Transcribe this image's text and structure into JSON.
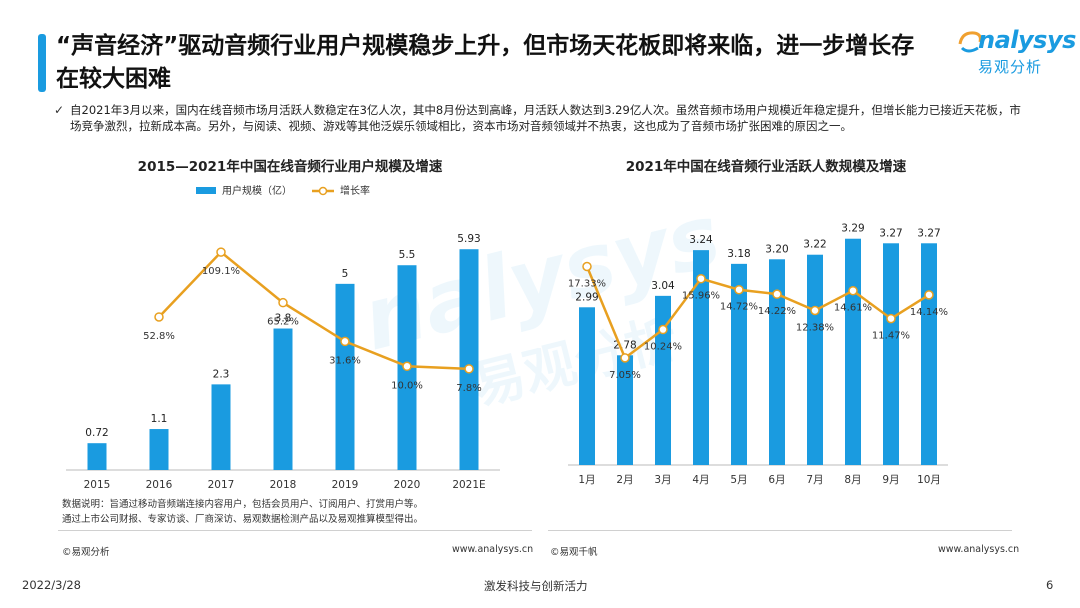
{
  "header": {
    "title": "“声音经济”驱动音频行业用户规模稳步上升，但市场天花板即将来临，进一步增长存在较大困难",
    "logo_en": "nalysys",
    "logo_cn": "易观分析"
  },
  "summary": {
    "text": "自2021年3月以来，国内在线音频市场月活跃人数稳定在3亿人次，其中8月份达到高峰，月活跃人数达到3.29亿人次。虽然音频市场用户规模近年稳定提升，但增长能力已接近天花板，市场竞争激烈，拉新成本高。另外，与阅读、视频、游戏等其他泛娱乐领域相比，资本市场对音频领域并不热衷，这也成为了音频市场扩张困难的原因之一。"
  },
  "colors": {
    "bar": "#1a9be0",
    "line": "#e8a020",
    "marker_fill": "#ffffff"
  },
  "chart_data": [
    {
      "type": "bar",
      "title": "2015—2021年中国在线音频行业用户规模及增速",
      "legend": [
        "用户规模（亿）",
        "增长率"
      ],
      "legend_position": "top",
      "categories": [
        "2015",
        "2016",
        "2017",
        "2018",
        "2019",
        "2020",
        "2021E"
      ],
      "series": [
        {
          "name": "用户规模（亿）",
          "type": "bar",
          "values": [
            0.72,
            1.1,
            2.3,
            3.8,
            5,
            5.5,
            5.93
          ],
          "labels": [
            "0.72",
            "1.1",
            "2.3",
            "3.8",
            "5",
            "5.5",
            "5.93"
          ]
        },
        {
          "name": "增长率",
          "type": "line",
          "values": [
            null,
            52.8,
            109.1,
            65.2,
            31.6,
            10.0,
            7.8
          ],
          "labels": [
            "",
            "52.8%",
            "109.1%",
            "65.2%",
            "31.6%",
            "10.0%",
            "7.8%"
          ]
        }
      ],
      "bar_range": [
        0,
        6.5
      ],
      "line_range": [
        -80,
        130
      ],
      "grid": false
    },
    {
      "type": "bar",
      "title": "2021年中国在线音频行业活跃人数规模及增速",
      "categories": [
        "1月",
        "2月",
        "3月",
        "4月",
        "5月",
        "6月",
        "7月",
        "8月",
        "9月",
        "10月"
      ],
      "series": [
        {
          "type": "bar",
          "values": [
            2.99,
            2.78,
            3.04,
            3.24,
            3.18,
            3.2,
            3.22,
            3.29,
            3.27,
            3.27
          ],
          "labels": [
            "2.99",
            "2.78",
            "3.04",
            "3.24",
            "3.18",
            "3.20",
            "3.22",
            "3.29",
            "3.27",
            "3.27"
          ]
        },
        {
          "type": "line",
          "values": [
            17.33,
            7.05,
            10.24,
            15.96,
            14.72,
            14.22,
            12.38,
            14.61,
            11.47,
            14.14
          ],
          "labels": [
            "17.33%",
            "7.05%",
            "10.24%",
            "15.96%",
            "14.72%",
            "14.22%",
            "12.38%",
            "14.61%",
            "11.47%",
            "14.14%"
          ]
        }
      ],
      "bar_range": [
        2.3,
        3.35
      ],
      "line_range": [
        -5,
        22
      ],
      "grid": false
    }
  ],
  "notes": {
    "line1": "数据说明：旨通过移动音频端连接内容用户，包括会员用户、订阅用户、打赏用户等。",
    "line2": "通过上市公司财报、专家访谈、厂商深访、易观数据检测产品以及易观推算模型得出。"
  },
  "sources": {
    "left_copyright": "©易观分析",
    "left_url": "www.analysys.cn",
    "right_copyright": "©易观千帆",
    "right_url": "www.analysys.cn"
  },
  "footer": {
    "date": "2022/3/28",
    "slogan": "激发科技与创新活力",
    "page": "6"
  }
}
